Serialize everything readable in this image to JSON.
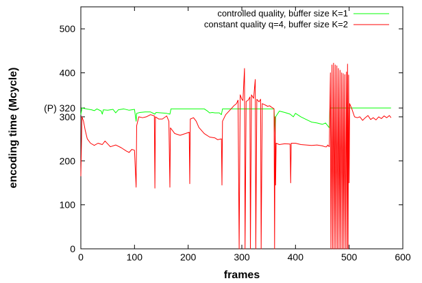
{
  "chart_data": {
    "type": "line",
    "title": "",
    "xlabel": "frames",
    "ylabel": "encoding time (Mcycle)",
    "xlim": [
      0,
      600
    ],
    "ylim": [
      0,
      550
    ],
    "xticks": [
      0,
      100,
      200,
      300,
      400,
      500,
      600
    ],
    "yticks": [
      0,
      100,
      200,
      300,
      400,
      500
    ],
    "extra_ytick": {
      "value": 320,
      "label": "(P) 320"
    },
    "grid": false,
    "legend_position": "top-right",
    "series": [
      {
        "name": "controlled quality, buffer size K=1",
        "color": "#00ff00",
        "points": [
          [
            0,
            305
          ],
          [
            2,
            320
          ],
          [
            10,
            318
          ],
          [
            20,
            316
          ],
          [
            25,
            314
          ],
          [
            30,
            318
          ],
          [
            38,
            313
          ],
          [
            40,
            306
          ],
          [
            42,
            316
          ],
          [
            50,
            315
          ],
          [
            60,
            317
          ],
          [
            65,
            309
          ],
          [
            70,
            316
          ],
          [
            80,
            318
          ],
          [
            90,
            315
          ],
          [
            100,
            317
          ],
          [
            103,
            290
          ],
          [
            104,
            308
          ],
          [
            110,
            310
          ],
          [
            120,
            311
          ],
          [
            130,
            311
          ],
          [
            138,
            306
          ],
          [
            140,
            310
          ],
          [
            150,
            309
          ],
          [
            160,
            308
          ],
          [
            166,
            306
          ],
          [
            168,
            318
          ],
          [
            180,
            318
          ],
          [
            190,
            318
          ],
          [
            200,
            318
          ],
          [
            202,
            318
          ],
          [
            204,
            318
          ],
          [
            210,
            318
          ],
          [
            220,
            318
          ],
          [
            230,
            318
          ],
          [
            235,
            314
          ],
          [
            240,
            309
          ],
          [
            245,
            310
          ],
          [
            250,
            309
          ],
          [
            258,
            309
          ],
          [
            262,
            305
          ],
          [
            264,
            318
          ],
          [
            280,
            318
          ],
          [
            300,
            318
          ],
          [
            320,
            318
          ],
          [
            340,
            318
          ],
          [
            355,
            318
          ],
          [
            360,
            318
          ],
          [
            362,
            260
          ],
          [
            363,
            300
          ],
          [
            370,
            313
          ],
          [
            380,
            310
          ],
          [
            390,
            306
          ],
          [
            393,
            303
          ],
          [
            396,
            300
          ],
          [
            400,
            308
          ],
          [
            410,
            300
          ],
          [
            420,
            294
          ],
          [
            430,
            288
          ],
          [
            440,
            286
          ],
          [
            450,
            283
          ],
          [
            456,
            286
          ],
          [
            460,
            280
          ],
          [
            463,
            275
          ],
          [
            464,
            320
          ],
          [
            470,
            320
          ],
          [
            480,
            320
          ],
          [
            490,
            320
          ],
          [
            500,
            320
          ],
          [
            520,
            320
          ],
          [
            540,
            320
          ],
          [
            560,
            320
          ],
          [
            578,
            320
          ]
        ]
      },
      {
        "name": "constant quality q=4, buffer size K=2",
        "color": "#ff0000",
        "points": [
          [
            0,
            165
          ],
          [
            2,
            300
          ],
          [
            5,
            290
          ],
          [
            8,
            270
          ],
          [
            12,
            250
          ],
          [
            18,
            240
          ],
          [
            25,
            235
          ],
          [
            32,
            240
          ],
          [
            40,
            237
          ],
          [
            45,
            245
          ],
          [
            55,
            232
          ],
          [
            65,
            236
          ],
          [
            75,
            230
          ],
          [
            85,
            222
          ],
          [
            90,
            219
          ],
          [
            95,
            226
          ],
          [
            100,
            224
          ],
          [
            103,
            140
          ],
          [
            104,
            280
          ],
          [
            108,
            300
          ],
          [
            115,
            298
          ],
          [
            122,
            300
          ],
          [
            130,
            305
          ],
          [
            137,
            302
          ],
          [
            138,
            138
          ],
          [
            139,
            300
          ],
          [
            145,
            295
          ],
          [
            152,
            295
          ],
          [
            160,
            302
          ],
          [
            164,
            290
          ],
          [
            166,
            140
          ],
          [
            167,
            275
          ],
          [
            175,
            262
          ],
          [
            185,
            258
          ],
          [
            195,
            262
          ],
          [
            202,
            265
          ],
          [
            203,
            148
          ],
          [
            204,
            295
          ],
          [
            210,
            298
          ],
          [
            215,
            290
          ],
          [
            220,
            276
          ],
          [
            230,
            262
          ],
          [
            240,
            254
          ],
          [
            250,
            252
          ],
          [
            255,
            248
          ],
          [
            262,
            250
          ],
          [
            263,
            145
          ],
          [
            264,
            290
          ],
          [
            270,
            305
          ],
          [
            280,
            318
          ],
          [
            285,
            325
          ],
          [
            290,
            330
          ],
          [
            293,
            338
          ],
          [
            295,
            0
          ],
          [
            297,
            350
          ],
          [
            300,
            340
          ],
          [
            302,
            337
          ],
          [
            305,
            410
          ],
          [
            306,
            0
          ],
          [
            308,
            335
          ],
          [
            312,
            338
          ],
          [
            315,
            345
          ],
          [
            316,
            0
          ],
          [
            318,
            350
          ],
          [
            322,
            342
          ],
          [
            325,
            385
          ],
          [
            326,
            0
          ],
          [
            328,
            340
          ],
          [
            332,
            334
          ],
          [
            335,
            340
          ],
          [
            336,
            0
          ],
          [
            338,
            330
          ],
          [
            342,
            328
          ],
          [
            348,
            324
          ],
          [
            352,
            325
          ],
          [
            355,
            322
          ],
          [
            358,
            320
          ],
          [
            360,
            318
          ],
          [
            361,
            0
          ],
          [
            362,
            300
          ],
          [
            363,
            145
          ],
          [
            364,
            240
          ],
          [
            370,
            237
          ],
          [
            380,
            239
          ],
          [
            390,
            238
          ],
          [
            391,
            150
          ],
          [
            392,
            240
          ],
          [
            400,
            240
          ],
          [
            410,
            237
          ],
          [
            420,
            236
          ],
          [
            430,
            235
          ],
          [
            440,
            236
          ],
          [
            450,
            234
          ],
          [
            455,
            232
          ],
          [
            458,
            232
          ],
          [
            460,
            236
          ],
          [
            463,
            232
          ],
          [
            465,
            400
          ],
          [
            466,
            0
          ],
          [
            468,
            418
          ],
          [
            469,
            0
          ],
          [
            471,
            422
          ],
          [
            472,
            0
          ],
          [
            474,
            418
          ],
          [
            475,
            0
          ],
          [
            477,
            416
          ],
          [
            478,
            0
          ],
          [
            480,
            410
          ],
          [
            481,
            0
          ],
          [
            483,
            406
          ],
          [
            484,
            0
          ],
          [
            486,
            400
          ],
          [
            487,
            0
          ],
          [
            489,
            398
          ],
          [
            490,
            0
          ],
          [
            492,
            396
          ],
          [
            493,
            0
          ],
          [
            495,
            402
          ],
          [
            496,
            0
          ],
          [
            497,
            420
          ],
          [
            498,
            0
          ],
          [
            499,
            395
          ],
          [
            500,
            150
          ],
          [
            501,
            330
          ],
          [
            505,
            318
          ],
          [
            510,
            300
          ],
          [
            515,
            298
          ],
          [
            520,
            300
          ],
          [
            525,
            292
          ],
          [
            530,
            298
          ],
          [
            535,
            303
          ],
          [
            540,
            294
          ],
          [
            545,
            298
          ],
          [
            550,
            293
          ],
          [
            555,
            300
          ],
          [
            560,
            296
          ],
          [
            565,
            302
          ],
          [
            570,
            298
          ],
          [
            575,
            303
          ],
          [
            578,
            298
          ]
        ]
      }
    ]
  }
}
